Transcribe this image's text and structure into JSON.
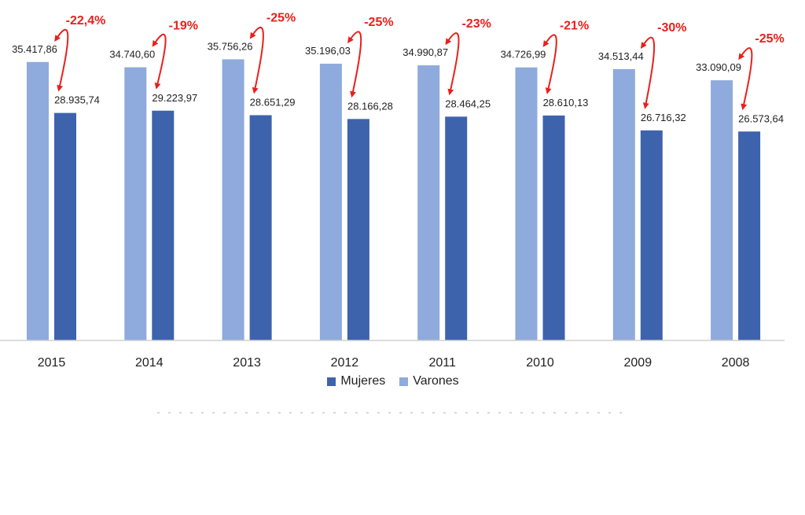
{
  "chart_data": {
    "type": "bar",
    "categories": [
      "2015",
      "2014",
      "2013",
      "2012",
      "2011",
      "2010",
      "2009",
      "2008"
    ],
    "series": [
      {
        "name": "Varones",
        "color": "#8faadc",
        "values": [
          35417.86,
          34740.6,
          35756.26,
          35196.03,
          34990.87,
          34726.99,
          34513.44,
          33090.09
        ],
        "labels": [
          "35.417,86",
          "34.740,60",
          "35.756,26",
          "35.196,03",
          "34.990,87",
          "34.726,99",
          "34.513,44",
          "33.090,09"
        ]
      },
      {
        "name": "Mujeres",
        "color": "#3e63ad",
        "values": [
          28935.74,
          29223.97,
          28651.29,
          28166.28,
          28464.25,
          28610.13,
          26716.32,
          26573.64
        ],
        "labels": [
          "28.935,74",
          "29.223,97",
          "28.651,29",
          "28.166,28",
          "28.464,25",
          "28.610,13",
          "26.716,32",
          "26.573,64"
        ]
      }
    ],
    "gap_annotations": [
      "-22,4%",
      "-19%",
      "-25%",
      "-25%",
      "-23%",
      "-21%",
      "-30%",
      "-25%"
    ],
    "annotation_color": "#e8201c",
    "legend_order": [
      "Mujeres",
      "Varones"
    ],
    "legend_position": "bottom",
    "ylim": [
      0,
      40000
    ],
    "grid": false,
    "title": "",
    "xlabel": "",
    "ylabel": ""
  }
}
